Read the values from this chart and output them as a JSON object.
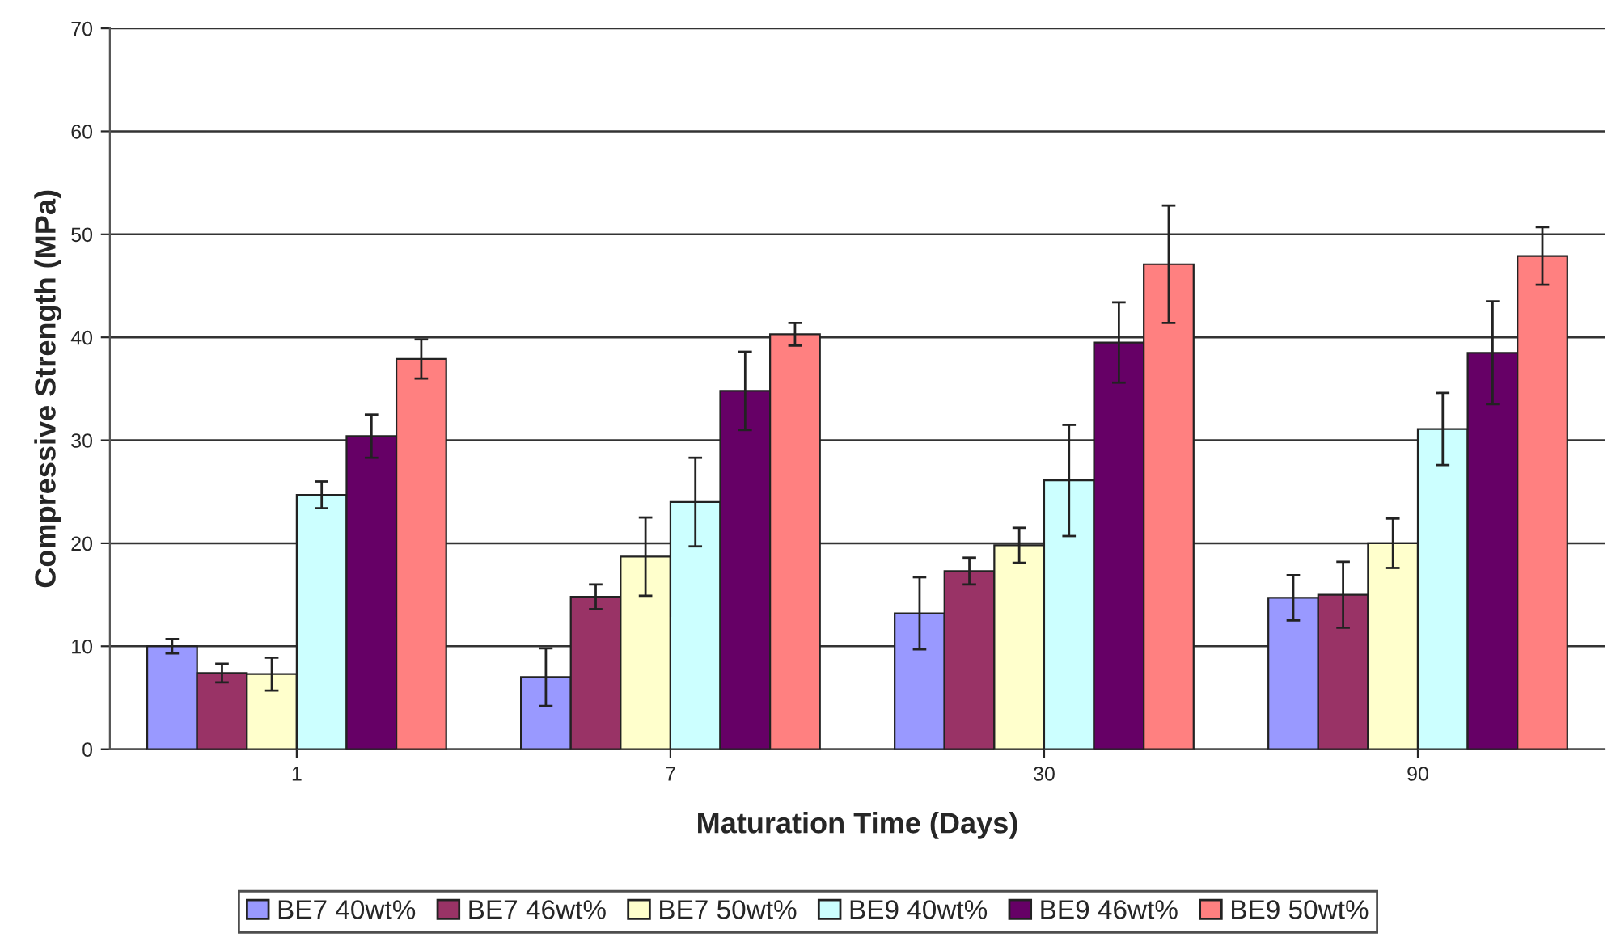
{
  "chart_data": {
    "type": "bar",
    "xlabel": "Maturation Time (Days)",
    "ylabel": "Compressive Strength (MPa)",
    "categories": [
      "1",
      "7",
      "30",
      "90"
    ],
    "ylim": [
      0,
      70
    ],
    "yticks": [
      0,
      10,
      20,
      30,
      40,
      50,
      60,
      70
    ],
    "grid": "y",
    "legend": "bottom",
    "series": [
      {
        "name": "BE7 40wt%",
        "color": "#9999ff",
        "values": [
          10,
          7,
          13.2,
          14.7
        ],
        "errors": [
          0.7,
          2.8,
          3.5,
          2.2
        ]
      },
      {
        "name": "BE7 46wt%",
        "color": "#993366",
        "values": [
          7.4,
          14.8,
          17.3,
          15
        ],
        "errors": [
          0.9,
          1.2,
          1.3,
          3.2
        ]
      },
      {
        "name": "BE7 50wt%",
        "color": "#ffffcc",
        "values": [
          7.3,
          18.7,
          19.8,
          20
        ],
        "errors": [
          1.6,
          3.8,
          1.7,
          2.4
        ]
      },
      {
        "name": "BE9 40wt%",
        "color": "#ccffff",
        "values": [
          24.7,
          24,
          26.1,
          31.1
        ],
        "errors": [
          1.3,
          4.3,
          5.4,
          3.5
        ]
      },
      {
        "name": "BE9 46wt%",
        "color": "#660066",
        "values": [
          30.4,
          34.8,
          39.5,
          38.5
        ],
        "errors": [
          2.1,
          3.8,
          3.9,
          5
        ]
      },
      {
        "name": "BE9 50wt%",
        "color": "#ff8080",
        "values": [
          37.9,
          40.3,
          47.1,
          47.9
        ],
        "errors": [
          1.9,
          1.1,
          5.7,
          2.8
        ]
      }
    ]
  }
}
